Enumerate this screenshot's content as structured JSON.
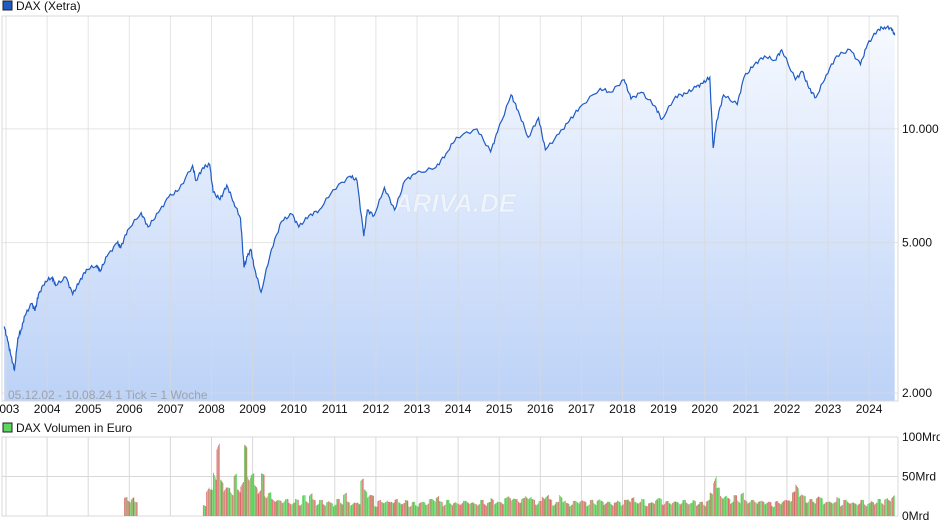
{
  "chart_data": [
    {
      "type": "area",
      "legend": "DAX (Xetra)",
      "legend_placement": "top-left",
      "info_text": "05.12.02 - 10.08.24   1 Tick = 1 Woche",
      "watermark": "ARIVA.DE",
      "y_scale": "log",
      "ylim": [
        1905,
        19900
      ],
      "y_ticks": [
        {
          "v": 2000,
          "label": "2.000"
        },
        {
          "v": 5000,
          "label": "5.000"
        },
        {
          "v": 10000,
          "label": "10.000"
        }
      ],
      "x_ticks": [
        "2003",
        "2004",
        "2005",
        "2006",
        "2007",
        "2008",
        "2009",
        "2010",
        "2011",
        "2012",
        "2013",
        "2014",
        "2015",
        "2016",
        "2017",
        "2018",
        "2019",
        "2020",
        "2021",
        "2022",
        "2023",
        "2024"
      ],
      "grid": true,
      "colors": {
        "line": "#1f5bc4",
        "fill_top": "#f6f9ff",
        "fill_bottom": "#bcd2f7",
        "grid": "#d8d8d8"
      },
      "series": [
        {
          "points": [
            [
              "2002-12",
              3000
            ],
            [
              "2003-01",
              2750
            ],
            [
              "2003-02",
              2500
            ],
            [
              "2003-03",
              2300
            ],
            [
              "2003-04",
              2800
            ],
            [
              "2003-05",
              2950
            ],
            [
              "2003-06",
              3200
            ],
            [
              "2003-08",
              3450
            ],
            [
              "2003-09",
              3300
            ],
            [
              "2003-10",
              3650
            ],
            [
              "2003-12",
              3950
            ],
            [
              "2004-02",
              4050
            ],
            [
              "2004-03",
              3850
            ],
            [
              "2004-06",
              4050
            ],
            [
              "2004-08",
              3650
            ],
            [
              "2004-10",
              3950
            ],
            [
              "2004-12",
              4250
            ],
            [
              "2005-03",
              4350
            ],
            [
              "2005-04",
              4200
            ],
            [
              "2005-06",
              4600
            ],
            [
              "2005-09",
              5000
            ],
            [
              "2005-10",
              4850
            ],
            [
              "2005-12",
              5400
            ],
            [
              "2006-04",
              6000
            ],
            [
              "2006-06",
              5500
            ],
            [
              "2006-09",
              6000
            ],
            [
              "2006-12",
              6600
            ],
            [
              "2007-03",
              6900
            ],
            [
              "2007-07",
              8000
            ],
            [
              "2007-08",
              7300
            ],
            [
              "2007-10",
              7900
            ],
            [
              "2007-12",
              8050
            ],
            [
              "2008-01",
              6800
            ],
            [
              "2008-03",
              6500
            ],
            [
              "2008-05",
              7100
            ],
            [
              "2008-07",
              6400
            ],
            [
              "2008-09",
              5800
            ],
            [
              "2008-10",
              4300
            ],
            [
              "2008-11",
              4600
            ],
            [
              "2008-12",
              4800
            ],
            [
              "2009-01",
              4300
            ],
            [
              "2009-03",
              3700
            ],
            [
              "2009-06",
              4800
            ],
            [
              "2009-09",
              5700
            ],
            [
              "2009-12",
              5950
            ],
            [
              "2010-02",
              5500
            ],
            [
              "2010-05",
              5900
            ],
            [
              "2010-08",
              6100
            ],
            [
              "2010-12",
              6900
            ],
            [
              "2011-05",
              7500
            ],
            [
              "2011-07",
              7300
            ],
            [
              "2011-09",
              5200
            ],
            [
              "2011-10",
              6100
            ],
            [
              "2011-12",
              5900
            ],
            [
              "2012-03",
              7000
            ],
            [
              "2012-06",
              6100
            ],
            [
              "2012-09",
              7300
            ],
            [
              "2012-12",
              7600
            ],
            [
              "2013-06",
              7900
            ],
            [
              "2013-09",
              8600
            ],
            [
              "2013-12",
              9500
            ],
            [
              "2014-06",
              10000
            ],
            [
              "2014-10",
              8700
            ],
            [
              "2014-12",
              9800
            ],
            [
              "2015-04",
              12300
            ],
            [
              "2015-06",
              11200
            ],
            [
              "2015-09",
              9500
            ],
            [
              "2015-12",
              10700
            ],
            [
              "2016-02",
              8800
            ],
            [
              "2016-06",
              9700
            ],
            [
              "2016-09",
              10500
            ],
            [
              "2016-12",
              11400
            ],
            [
              "2017-06",
              12800
            ],
            [
              "2017-09",
              12500
            ],
            [
              "2018-01",
              13500
            ],
            [
              "2018-03",
              12000
            ],
            [
              "2018-06",
              12500
            ],
            [
              "2018-10",
              11500
            ],
            [
              "2018-12",
              10600
            ],
            [
              "2019-04",
              12200
            ],
            [
              "2019-07",
              12400
            ],
            [
              "2019-10",
              12900
            ],
            [
              "2019-12",
              13200
            ],
            [
              "2020-02",
              13700
            ],
            [
              "2020-03",
              8900
            ],
            [
              "2020-04",
              10500
            ],
            [
              "2020-06",
              12300
            ],
            [
              "2020-10",
              11600
            ],
            [
              "2020-12",
              13700
            ],
            [
              "2021-03",
              14800
            ],
            [
              "2021-06",
              15600
            ],
            [
              "2021-09",
              15200
            ],
            [
              "2021-11",
              16200
            ],
            [
              "2022-03",
              13500
            ],
            [
              "2022-05",
              14200
            ],
            [
              "2022-07",
              12800
            ],
            [
              "2022-09",
              12100
            ],
            [
              "2022-12",
              13900
            ],
            [
              "2023-03",
              15600
            ],
            [
              "2023-07",
              16200
            ],
            [
              "2023-10",
              14800
            ],
            [
              "2023-12",
              16700
            ],
            [
              "2024-03",
              18300
            ],
            [
              "2024-05",
              18600
            ],
            [
              "2024-07",
              18500
            ],
            [
              "2024-08",
              17700
            ]
          ]
        }
      ]
    },
    {
      "type": "bar",
      "legend": "DAX Volumen in Euro",
      "legend_placement": "top-left",
      "y_unit": "Mrd",
      "ylim": [
        0,
        100
      ],
      "y_ticks": [
        {
          "v": 0,
          "label": "0Mrd"
        },
        {
          "v": 50,
          "label": "50Mrd"
        },
        {
          "v": 100,
          "label": "100Mrd"
        }
      ],
      "colors": {
        "up": "#5cd65c",
        "down": "#d96060"
      },
      "series": [
        {
          "start": "2005-11",
          "values_by_year": {
            "2005": [
              null,
              null,
              null,
              null,
              null,
              null,
              null,
              null,
              null,
              null,
              20,
              18
            ],
            "2006": [
              22,
              15,
              null,
              null,
              null,
              null,
              null,
              null,
              null,
              null,
              null,
              null
            ],
            "2007": [
              null,
              null,
              null,
              null,
              null,
              null,
              null,
              null,
              null,
              12,
              35,
              28
            ],
            "2008": [
              55,
              78,
              40,
              35,
              30,
              32,
              45,
              30,
              40,
              75,
              55,
              45
            ],
            "2009": [
              35,
              30,
              45,
              28,
              25,
              20,
              18,
              17,
              20,
              18,
              16,
              15
            ],
            "2010": [
              18,
              16,
              22,
              18,
              25,
              18,
              16,
              17,
              15,
              16,
              15,
              14
            ],
            "2011": [
              18,
              17,
              25,
              16,
              15,
              14,
              18,
              40,
              30,
              25,
              22,
              14
            ],
            "2012": [
              17,
              16,
              18,
              15,
              20,
              18,
              16,
              15,
              17,
              14,
              15,
              13
            ],
            "2013": [
              16,
              15,
              17,
              18,
              20,
              22,
              16,
              15,
              17,
              16,
              15,
              14
            ],
            "2014": [
              17,
              16,
              18,
              15,
              14,
              15,
              17,
              16,
              15,
              20,
              16,
              15
            ],
            "2015": [
              18,
              20,
              22,
              21,
              18,
              20,
              19,
              23,
              22,
              18,
              17,
              16
            ],
            "2016": [
              22,
              24,
              18,
              16,
              15,
              25,
              17,
              14,
              15,
              16,
              18,
              17
            ],
            "2017": [
              16,
              15,
              17,
              16,
              18,
              17,
              16,
              15,
              16,
              15,
              17,
              14
            ],
            "2018": [
              17,
              22,
              20,
              16,
              17,
              18,
              15,
              14,
              16,
              20,
              19,
              17
            ],
            "2019": [
              16,
              15,
              17,
              15,
              18,
              17,
              16,
              15,
              17,
              16,
              15,
              14
            ],
            "2020": [
              18,
              25,
              52,
              30,
              25,
              22,
              20,
              18,
              22,
              20,
              25,
              18
            ],
            "2021": [
              18,
              17,
              19,
              16,
              17,
              16,
              15,
              14,
              16,
              15,
              18,
              17
            ],
            "2022": [
              22,
              26,
              36,
              25,
              22,
              20,
              18,
              17,
              22,
              20,
              18,
              15
            ],
            "2023": [
              17,
              16,
              20,
              15,
              17,
              18,
              15,
              14,
              16,
              17,
              15,
              14
            ],
            "2024": [
              16,
              17,
              18,
              17,
              19,
              18,
              25,
              null,
              null,
              null,
              null,
              null
            ]
          }
        }
      ]
    }
  ]
}
